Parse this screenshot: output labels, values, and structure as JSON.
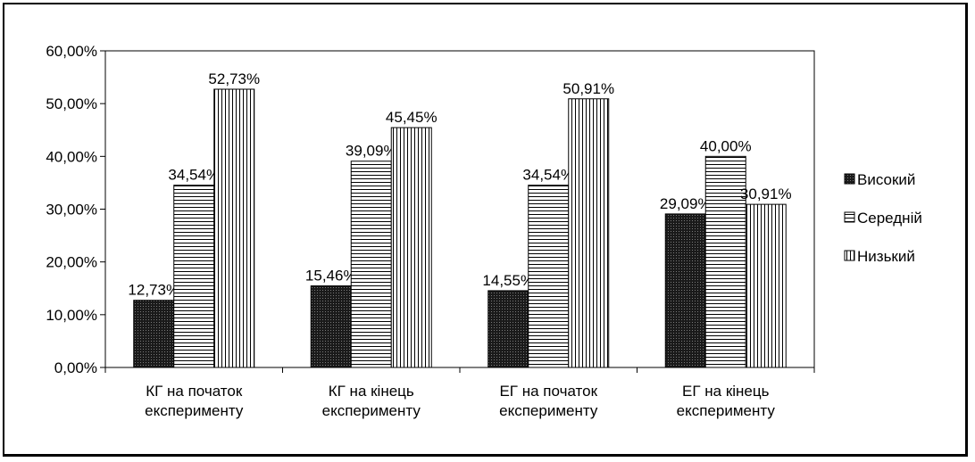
{
  "chart_data": {
    "type": "bar",
    "title": "",
    "xlabel": "",
    "ylabel": "",
    "ylim": [
      0,
      60
    ],
    "y_ticks": [
      0,
      10,
      20,
      30,
      40,
      50,
      60
    ],
    "y_tick_labels": [
      "0,00%",
      "10,00%",
      "20,00%",
      "30,00%",
      "40,00%",
      "50,00%",
      "60,00%"
    ],
    "categories": [
      [
        "КГ на початок",
        "експерименту"
      ],
      [
        "КГ на кінець",
        "експерименту"
      ],
      [
        "ЕГ на початок",
        "експерименту"
      ],
      [
        "ЕГ на кінець",
        "експерименту"
      ]
    ],
    "series": [
      {
        "name": "Високий",
        "pattern": "dots",
        "values": [
          12.73,
          15.46,
          14.55,
          29.09
        ],
        "labels": [
          "12,73%",
          "15,46%",
          "14,55%",
          "29,09%"
        ]
      },
      {
        "name": "Середній",
        "pattern": "hlines",
        "values": [
          34.54,
          39.09,
          34.54,
          40.0
        ],
        "labels": [
          "34,54%",
          "39,09%",
          "34,54%",
          "40,00%"
        ]
      },
      {
        "name": "Низький",
        "pattern": "vlines",
        "values": [
          52.73,
          45.45,
          50.91,
          30.91
        ],
        "labels": [
          "52,73%",
          "45,45%",
          "50,91%",
          "30,91%"
        ]
      }
    ],
    "legend_position": "right",
    "grid": false
  }
}
